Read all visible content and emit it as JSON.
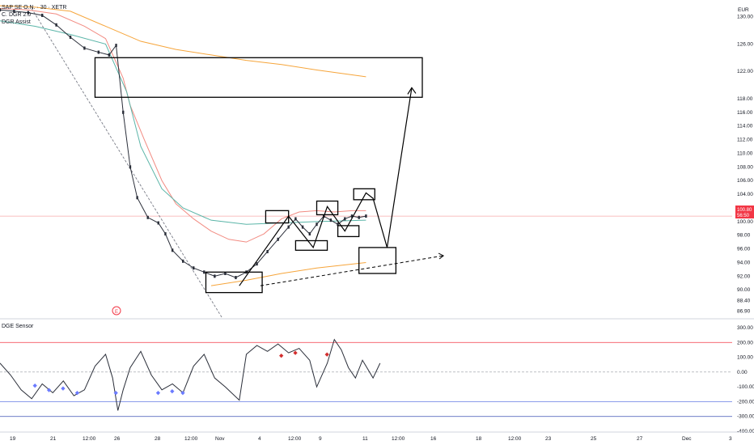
{
  "header": {
    "symbol_line": "SAP SE O.N. · 30 · XETR",
    "indicator_1": "C. DGR 2.0",
    "indicator_2": "DGR Assist",
    "currency": "EUR"
  },
  "sub_panel": {
    "title": "DGE Sensor"
  },
  "price_tag": {
    "value": "100.80",
    "time": "56:50"
  },
  "chart_data": {
    "type": "line",
    "title": "SAP SE O.N. · 30 · XETR",
    "price_axis": {
      "ticks": [
        "130.00",
        "126.00",
        "122.00",
        "118.00",
        "116.00",
        "114.00",
        "112.00",
        "110.00",
        "108.00",
        "106.00",
        "104.00",
        "102.00",
        "100.00",
        "98.00",
        "96.00",
        "94.00",
        "92.00",
        "90.00",
        "88.40",
        "86.90"
      ],
      "values": [
        130,
        126,
        122,
        118,
        116,
        114,
        112,
        110,
        108,
        106,
        104,
        102,
        100,
        98,
        96,
        94,
        92,
        90,
        88.4,
        86.9
      ]
    },
    "time_axis": {
      "ticks": [
        "19",
        "21",
        "12:00",
        "26",
        "28",
        "12:00",
        "Nov",
        "4",
        "12:00",
        "9",
        "11",
        "12:00",
        "16",
        "18",
        "12:00",
        "23",
        "25",
        "27",
        "Dec",
        "3"
      ]
    },
    "price_series": [
      {
        "t": 0,
        "y": 131.0
      },
      {
        "t": 0.4,
        "y": 130.8
      },
      {
        "t": 0.8,
        "y": 130.6
      },
      {
        "t": 1.2,
        "y": 130.2
      },
      {
        "t": 1.6,
        "y": 128.8
      },
      {
        "t": 2.0,
        "y": 127.0
      },
      {
        "t": 2.4,
        "y": 125.4
      },
      {
        "t": 2.8,
        "y": 124.8
      },
      {
        "t": 3.1,
        "y": 124.4
      },
      {
        "t": 3.3,
        "y": 125.8
      },
      {
        "t": 3.5,
        "y": 116.0
      },
      {
        "t": 3.7,
        "y": 108.0
      },
      {
        "t": 3.9,
        "y": 103.5
      },
      {
        "t": 4.2,
        "y": 100.6
      },
      {
        "t": 4.5,
        "y": 99.8
      },
      {
        "t": 4.7,
        "y": 98.2
      },
      {
        "t": 4.9,
        "y": 95.8
      },
      {
        "t": 5.2,
        "y": 94.2
      },
      {
        "t": 5.5,
        "y": 93.2
      },
      {
        "t": 5.8,
        "y": 92.6
      },
      {
        "t": 6.1,
        "y": 92.0
      },
      {
        "t": 6.4,
        "y": 92.4
      },
      {
        "t": 6.7,
        "y": 91.8
      },
      {
        "t": 7.0,
        "y": 92.6
      },
      {
        "t": 7.3,
        "y": 93.8
      },
      {
        "t": 7.6,
        "y": 95.6
      },
      {
        "t": 7.9,
        "y": 97.4
      },
      {
        "t": 8.2,
        "y": 99.2
      },
      {
        "t": 8.4,
        "y": 100.4
      },
      {
        "t": 8.6,
        "y": 99.2
      },
      {
        "t": 8.8,
        "y": 98.2
      },
      {
        "t": 9.0,
        "y": 99.6
      },
      {
        "t": 9.2,
        "y": 100.8
      },
      {
        "t": 9.4,
        "y": 100.2
      },
      {
        "t": 9.6,
        "y": 99.6
      },
      {
        "t": 9.8,
        "y": 100.4
      },
      {
        "t": 10.0,
        "y": 100.8
      },
      {
        "t": 10.2,
        "y": 100.6
      },
      {
        "t": 10.4,
        "y": 100.8
      }
    ],
    "upper_band": [
      {
        "t": 0,
        "y": 131.2
      },
      {
        "t": 0.8,
        "y": 131.0
      },
      {
        "t": 1.6,
        "y": 130.4
      },
      {
        "t": 2.4,
        "y": 128.6
      },
      {
        "t": 3.0,
        "y": 126.8
      },
      {
        "t": 3.5,
        "y": 121.0
      },
      {
        "t": 3.7,
        "y": 117.0
      },
      {
        "t": 4.1,
        "y": 112.0
      },
      {
        "t": 4.6,
        "y": 106.0
      },
      {
        "t": 5.0,
        "y": 102.6
      },
      {
        "t": 5.5,
        "y": 100.4
      },
      {
        "t": 6.0,
        "y": 98.6
      },
      {
        "t": 6.5,
        "y": 97.4
      },
      {
        "t": 7.0,
        "y": 97.0
      },
      {
        "t": 7.5,
        "y": 98.2
      },
      {
        "t": 8.0,
        "y": 100.4
      },
      {
        "t": 8.5,
        "y": 101.4
      },
      {
        "t": 9.0,
        "y": 101.6
      },
      {
        "t": 9.5,
        "y": 101.4
      },
      {
        "t": 10.0,
        "y": 101.6
      },
      {
        "t": 10.4,
        "y": 101.6
      }
    ],
    "mid_line": [
      {
        "t": 0,
        "y": 129.4
      },
      {
        "t": 1.0,
        "y": 128.6
      },
      {
        "t": 2.0,
        "y": 127.4
      },
      {
        "t": 3.0,
        "y": 126.0
      },
      {
        "t": 3.6,
        "y": 119.0
      },
      {
        "t": 4.0,
        "y": 111.0
      },
      {
        "t": 4.6,
        "y": 104.8
      },
      {
        "t": 5.2,
        "y": 102.0
      },
      {
        "t": 6.0,
        "y": 100.2
      },
      {
        "t": 7.0,
        "y": 99.6
      },
      {
        "t": 8.0,
        "y": 99.8
      },
      {
        "t": 9.0,
        "y": 100.0
      },
      {
        "t": 10.4,
        "y": 100.2
      }
    ],
    "orange_line": [
      {
        "t": 0,
        "y": 131.6
      },
      {
        "t": 1.0,
        "y": 131.4
      },
      {
        "t": 2.0,
        "y": 130.8
      },
      {
        "t": 3.0,
        "y": 128.6
      },
      {
        "t": 4.0,
        "y": 126.4
      },
      {
        "t": 5.0,
        "y": 125.2
      },
      {
        "t": 6.0,
        "y": 124.4
      },
      {
        "t": 7.0,
        "y": 123.6
      },
      {
        "t": 8.0,
        "y": 123.0
      },
      {
        "t": 9.0,
        "y": 122.2
      },
      {
        "t": 10.4,
        "y": 121.2
      }
    ],
    "lower_orange": [
      {
        "t": 6.0,
        "y": 90.6
      },
      {
        "t": 7.0,
        "y": 91.4
      },
      {
        "t": 8.0,
        "y": 92.4
      },
      {
        "t": 9.0,
        "y": 93.2
      },
      {
        "t": 10.4,
        "y": 94.0
      }
    ],
    "diag_line": [
      {
        "t": 0.9,
        "y": 131.2
      },
      {
        "t": 6.3,
        "y": 86.0
      }
    ],
    "rectangles": [
      {
        "t1": 2.7,
        "t2": 12.0,
        "y1": 118.2,
        "y2": 124.0
      },
      {
        "t1": 5.85,
        "t2": 7.45,
        "y1": 89.6,
        "y2": 92.6
      },
      {
        "t1": 7.55,
        "t2": 8.2,
        "y1": 99.8,
        "y2": 101.6
      },
      {
        "t1": 8.4,
        "t2": 9.3,
        "y1": 95.8,
        "y2": 97.2
      },
      {
        "t1": 9.0,
        "t2": 9.6,
        "y1": 101.0,
        "y2": 103.0
      },
      {
        "t1": 9.6,
        "t2": 10.2,
        "y1": 97.8,
        "y2": 99.4
      },
      {
        "t1": 10.05,
        "t2": 10.65,
        "y1": 103.2,
        "y2": 104.8
      },
      {
        "t1": 10.2,
        "t2": 11.25,
        "y1": 92.4,
        "y2": 96.2
      }
    ],
    "projection_path": [
      {
        "t": 6.8,
        "y": 90.6
      },
      {
        "t": 8.2,
        "y": 100.8
      },
      {
        "t": 8.9,
        "y": 96.2
      },
      {
        "t": 9.3,
        "y": 102.2
      },
      {
        "t": 9.8,
        "y": 98.6
      },
      {
        "t": 10.4,
        "y": 104.2
      },
      {
        "t": 10.6,
        "y": 103.4
      },
      {
        "t": 11.0,
        "y": 96.2
      },
      {
        "t": 11.7,
        "y": 119.6
      }
    ],
    "dashed_projection": [
      {
        "t": 7.4,
        "y": 90.6
      },
      {
        "t": 12.6,
        "y": 95.0
      }
    ],
    "oscillator": {
      "ylim": [
        -400,
        300
      ],
      "ticks": [
        "300.00",
        "200.00",
        "100.00",
        "0.00",
        "-100.00",
        "-200.00",
        "-300.00",
        "-400.00"
      ],
      "tick_values": [
        300,
        200,
        100,
        0,
        -100,
        -200,
        -300,
        -400
      ],
      "overbought": 200,
      "oversold": -200,
      "upper_blue": -200,
      "lower_blue": -300,
      "values": [
        {
          "t": 0,
          "y": 60
        },
        {
          "t": 0.3,
          "y": -20
        },
        {
          "t": 0.6,
          "y": -120
        },
        {
          "t": 0.9,
          "y": -180
        },
        {
          "t": 1.2,
          "y": -80
        },
        {
          "t": 1.5,
          "y": -140
        },
        {
          "t": 1.8,
          "y": -60
        },
        {
          "t": 2.1,
          "y": -160
        },
        {
          "t": 2.4,
          "y": -120
        },
        {
          "t": 2.7,
          "y": 40
        },
        {
          "t": 3.0,
          "y": 120
        },
        {
          "t": 3.2,
          "y": -40
        },
        {
          "t": 3.35,
          "y": -260
        },
        {
          "t": 3.5,
          "y": -120
        },
        {
          "t": 3.7,
          "y": 30
        },
        {
          "t": 4.0,
          "y": 140
        },
        {
          "t": 4.3,
          "y": -20
        },
        {
          "t": 4.6,
          "y": -120
        },
        {
          "t": 4.9,
          "y": -80
        },
        {
          "t": 5.2,
          "y": -140
        },
        {
          "t": 5.5,
          "y": 40
        },
        {
          "t": 5.8,
          "y": 120
        },
        {
          "t": 6.1,
          "y": -40
        },
        {
          "t": 6.4,
          "y": -100
        },
        {
          "t": 6.8,
          "y": -190
        },
        {
          "t": 7.0,
          "y": 120
        },
        {
          "t": 7.3,
          "y": 180
        },
        {
          "t": 7.6,
          "y": 140
        },
        {
          "t": 7.9,
          "y": 190
        },
        {
          "t": 8.2,
          "y": 130
        },
        {
          "t": 8.5,
          "y": 160
        },
        {
          "t": 8.8,
          "y": 80
        },
        {
          "t": 9.0,
          "y": -100
        },
        {
          "t": 9.3,
          "y": 60
        },
        {
          "t": 9.5,
          "y": 220
        },
        {
          "t": 9.7,
          "y": 150
        },
        {
          "t": 9.9,
          "y": 30
        },
        {
          "t": 10.1,
          "y": -40
        },
        {
          "t": 10.3,
          "y": 80
        },
        {
          "t": 10.4,
          "y": 40
        },
        {
          "t": 10.6,
          "y": -40
        },
        {
          "t": 10.8,
          "y": 60
        }
      ],
      "blue_markers": [
        {
          "t": 1.0,
          "y": -90
        },
        {
          "t": 1.4,
          "y": -120
        },
        {
          "t": 1.8,
          "y": -110
        },
        {
          "t": 2.2,
          "y": -140
        },
        {
          "t": 3.3,
          "y": -140
        },
        {
          "t": 4.5,
          "y": -140
        },
        {
          "t": 4.9,
          "y": -130
        },
        {
          "t": 5.2,
          "y": -140
        }
      ],
      "red_markers": [
        {
          "t": 8.0,
          "y": 110
        },
        {
          "t": 8.4,
          "y": 130
        },
        {
          "t": 9.3,
          "y": 120
        }
      ]
    }
  }
}
